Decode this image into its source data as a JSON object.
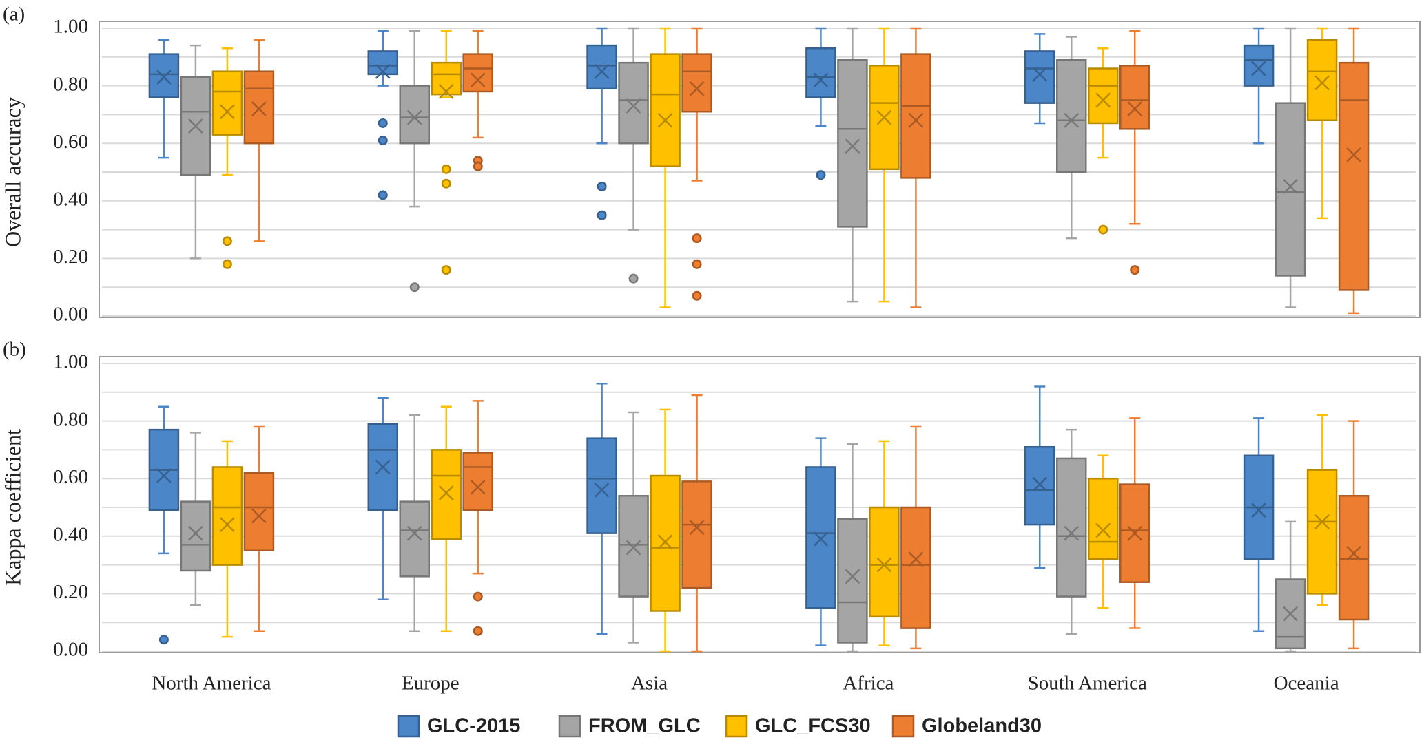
{
  "chart_data": [
    {
      "type": "box",
      "panel_label": "(a)",
      "ylabel": "Overall accuracy",
      "ylim": [
        0,
        1
      ],
      "yticks": [
        {
          "value": 0,
          "label": "0.00"
        },
        {
          "value": 0.2,
          "label": "0.20"
        },
        {
          "value": 0.4,
          "label": "0.40"
        },
        {
          "value": 0.6,
          "label": "0.60"
        },
        {
          "value": 0.8,
          "label": "0.80"
        },
        {
          "value": 1,
          "label": "1.00"
        }
      ],
      "yminorticks": [
        0.1,
        0.3,
        0.5,
        0.7,
        0.9
      ],
      "grid": true,
      "series": [
        {
          "name": "GLC-2015",
          "color": "#4a86c8",
          "values": [
            {
              "min": 0.55,
              "q1": 0.76,
              "median": 0.84,
              "q3": 0.91,
              "max": 0.96,
              "mean": 0.83,
              "outliers": []
            },
            {
              "min": 0.8,
              "q1": 0.84,
              "median": 0.87,
              "q3": 0.92,
              "max": 0.99,
              "mean": 0.85,
              "outliers": [
                0.67,
                0.61,
                0.42
              ]
            },
            {
              "min": 0.6,
              "q1": 0.79,
              "median": 0.87,
              "q3": 0.94,
              "max": 1.0,
              "mean": 0.85,
              "outliers": [
                0.45,
                0.35
              ]
            },
            {
              "min": 0.66,
              "q1": 0.76,
              "median": 0.83,
              "q3": 0.93,
              "max": 1.0,
              "mean": 0.82,
              "outliers": [
                0.49
              ]
            },
            {
              "min": 0.67,
              "q1": 0.74,
              "median": 0.86,
              "q3": 0.92,
              "max": 0.98,
              "mean": 0.84,
              "outliers": []
            },
            {
              "min": 0.6,
              "q1": 0.8,
              "median": 0.89,
              "q3": 0.94,
              "max": 1.0,
              "mean": 0.86,
              "outliers": []
            }
          ]
        },
        {
          "name": "FROM_GLC",
          "color": "#a5a5a5",
          "values": [
            {
              "min": 0.2,
              "q1": 0.49,
              "median": 0.71,
              "q3": 0.83,
              "max": 0.94,
              "mean": 0.66,
              "outliers": []
            },
            {
              "min": 0.38,
              "q1": 0.6,
              "median": 0.69,
              "q3": 0.8,
              "max": 0.99,
              "mean": 0.69,
              "outliers": [
                0.1
              ]
            },
            {
              "min": 0.3,
              "q1": 0.6,
              "median": 0.75,
              "q3": 0.88,
              "max": 1.0,
              "mean": 0.73,
              "outliers": [
                0.13
              ]
            },
            {
              "min": 0.05,
              "q1": 0.31,
              "median": 0.65,
              "q3": 0.89,
              "max": 1.0,
              "mean": 0.59,
              "outliers": []
            },
            {
              "min": 0.27,
              "q1": 0.5,
              "median": 0.68,
              "q3": 0.89,
              "max": 0.97,
              "mean": 0.68,
              "outliers": []
            },
            {
              "min": 0.03,
              "q1": 0.14,
              "median": 0.43,
              "q3": 0.74,
              "max": 1.0,
              "mean": 0.45,
              "outliers": []
            }
          ]
        },
        {
          "name": "GLC_FCS30",
          "color": "#ffc000",
          "values": [
            {
              "min": 0.49,
              "q1": 0.63,
              "median": 0.78,
              "q3": 0.85,
              "max": 0.93,
              "mean": 0.71,
              "outliers": [
                0.26,
                0.18
              ]
            },
            {
              "min": 0.76,
              "q1": 0.77,
              "median": 0.84,
              "q3": 0.88,
              "max": 0.99,
              "mean": 0.78,
              "outliers": [
                0.51,
                0.46,
                0.16
              ]
            },
            {
              "min": 0.03,
              "q1": 0.52,
              "median": 0.77,
              "q3": 0.91,
              "max": 1.0,
              "mean": 0.68,
              "outliers": []
            },
            {
              "min": 0.05,
              "q1": 0.51,
              "median": 0.74,
              "q3": 0.87,
              "max": 1.0,
              "mean": 0.69,
              "outliers": []
            },
            {
              "min": 0.55,
              "q1": 0.67,
              "median": 0.8,
              "q3": 0.86,
              "max": 0.93,
              "mean": 0.75,
              "outliers": [
                0.3
              ]
            },
            {
              "min": 0.34,
              "q1": 0.68,
              "median": 0.85,
              "q3": 0.96,
              "max": 1.0,
              "mean": 0.81,
              "outliers": []
            }
          ]
        },
        {
          "name": "Globeland30",
          "color": "#ed7d31",
          "values": [
            {
              "min": 0.26,
              "q1": 0.6,
              "median": 0.79,
              "q3": 0.85,
              "max": 0.96,
              "mean": 0.72,
              "outliers": []
            },
            {
              "min": 0.62,
              "q1": 0.78,
              "median": 0.86,
              "q3": 0.91,
              "max": 0.99,
              "mean": 0.82,
              "outliers": [
                0.54,
                0.52
              ]
            },
            {
              "min": 0.47,
              "q1": 0.71,
              "median": 0.85,
              "q3": 0.91,
              "max": 1.0,
              "mean": 0.79,
              "outliers": [
                0.27,
                0.18,
                0.07
              ]
            },
            {
              "min": 0.03,
              "q1": 0.48,
              "median": 0.73,
              "q3": 0.91,
              "max": 1.0,
              "mean": 0.68,
              "outliers": []
            },
            {
              "min": 0.32,
              "q1": 0.65,
              "median": 0.75,
              "q3": 0.87,
              "max": 0.99,
              "mean": 0.72,
              "outliers": [
                0.16
              ]
            },
            {
              "min": 0.01,
              "q1": 0.09,
              "median": 0.75,
              "q3": 0.88,
              "max": 1.0,
              "mean": 0.56,
              "outliers": []
            }
          ]
        }
      ]
    },
    {
      "type": "box",
      "panel_label": "(b)",
      "ylabel": "Kappa coefficient",
      "categories": [
        "North America",
        "Europe",
        "Asia",
        "Africa",
        "South America",
        "Oceania"
      ],
      "ylim": [
        0,
        1
      ],
      "yticks": [
        {
          "value": 0,
          "label": "0.00"
        },
        {
          "value": 0.2,
          "label": "0.20"
        },
        {
          "value": 0.4,
          "label": "0.40"
        },
        {
          "value": 0.6,
          "label": "0.60"
        },
        {
          "value": 0.8,
          "label": "0.80"
        },
        {
          "value": 1,
          "label": "1.00"
        }
      ],
      "yminorticks": [
        0.1,
        0.3,
        0.5,
        0.7,
        0.9
      ],
      "grid": true,
      "series": [
        {
          "values": [
            {
              "min": 0.34,
              "q1": 0.49,
              "median": 0.63,
              "q3": 0.77,
              "max": 0.85,
              "mean": 0.61,
              "outliers": [
                0.04
              ]
            },
            {
              "min": 0.18,
              "q1": 0.49,
              "median": 0.7,
              "q3": 0.79,
              "max": 0.88,
              "mean": 0.64,
              "outliers": []
            },
            {
              "min": 0.06,
              "q1": 0.41,
              "median": 0.6,
              "q3": 0.74,
              "max": 0.93,
              "mean": 0.56,
              "outliers": []
            },
            {
              "min": 0.02,
              "q1": 0.15,
              "median": 0.41,
              "q3": 0.64,
              "max": 0.74,
              "mean": 0.39,
              "outliers": []
            },
            {
              "min": 0.29,
              "q1": 0.44,
              "median": 0.56,
              "q3": 0.71,
              "max": 0.92,
              "mean": 0.58,
              "outliers": []
            },
            {
              "min": 0.07,
              "q1": 0.32,
              "median": 0.5,
              "q3": 0.68,
              "max": 0.81,
              "mean": 0.49,
              "outliers": []
            }
          ]
        },
        {
          "values": [
            {
              "min": 0.16,
              "q1": 0.28,
              "median": 0.37,
              "q3": 0.52,
              "max": 0.76,
              "mean": 0.41,
              "outliers": []
            },
            {
              "min": 0.07,
              "q1": 0.26,
              "median": 0.42,
              "q3": 0.52,
              "max": 0.82,
              "mean": 0.41,
              "outliers": []
            },
            {
              "min": 0.03,
              "q1": 0.19,
              "median": 0.37,
              "q3": 0.54,
              "max": 0.83,
              "mean": 0.36,
              "outliers": []
            },
            {
              "min": 0.0,
              "q1": 0.03,
              "median": 0.17,
              "q3": 0.46,
              "max": 0.72,
              "mean": 0.26,
              "outliers": []
            },
            {
              "min": 0.06,
              "q1": 0.19,
              "median": 0.4,
              "q3": 0.67,
              "max": 0.77,
              "mean": 0.41,
              "outliers": []
            },
            {
              "min": 0.0,
              "q1": 0.01,
              "median": 0.05,
              "q3": 0.25,
              "max": 0.45,
              "mean": 0.13,
              "outliers": []
            }
          ]
        },
        {
          "values": [
            {
              "min": 0.05,
              "q1": 0.3,
              "median": 0.5,
              "q3": 0.64,
              "max": 0.73,
              "mean": 0.44,
              "outliers": []
            },
            {
              "min": 0.07,
              "q1": 0.39,
              "median": 0.61,
              "q3": 0.7,
              "max": 0.85,
              "mean": 0.55,
              "outliers": []
            },
            {
              "min": 0.0,
              "q1": 0.14,
              "median": 0.36,
              "q3": 0.61,
              "max": 0.84,
              "mean": 0.38,
              "outliers": []
            },
            {
              "min": 0.02,
              "q1": 0.12,
              "median": 0.3,
              "q3": 0.5,
              "max": 0.73,
              "mean": 0.3,
              "outliers": []
            },
            {
              "min": 0.15,
              "q1": 0.32,
              "median": 0.38,
              "q3": 0.6,
              "max": 0.68,
              "mean": 0.42,
              "outliers": []
            },
            {
              "min": 0.16,
              "q1": 0.2,
              "median": 0.45,
              "q3": 0.63,
              "max": 0.82,
              "mean": 0.45,
              "outliers": []
            }
          ]
        },
        {
          "values": [
            {
              "min": 0.07,
              "q1": 0.35,
              "median": 0.5,
              "q3": 0.62,
              "max": 0.78,
              "mean": 0.47,
              "outliers": []
            },
            {
              "min": 0.27,
              "q1": 0.49,
              "median": 0.64,
              "q3": 0.69,
              "max": 0.87,
              "mean": 0.57,
              "outliers": [
                0.19,
                0.07
              ]
            },
            {
              "min": 0.0,
              "q1": 0.22,
              "median": 0.44,
              "q3": 0.59,
              "max": 0.89,
              "mean": 0.43,
              "outliers": []
            },
            {
              "min": 0.01,
              "q1": 0.08,
              "median": 0.3,
              "q3": 0.5,
              "max": 0.78,
              "mean": 0.32,
              "outliers": []
            },
            {
              "min": 0.08,
              "q1": 0.24,
              "median": 0.42,
              "q3": 0.58,
              "max": 0.81,
              "mean": 0.41,
              "outliers": []
            },
            {
              "min": 0.01,
              "q1": 0.11,
              "median": 0.32,
              "q3": 0.54,
              "max": 0.8,
              "mean": 0.34,
              "outliers": []
            }
          ]
        }
      ]
    }
  ]
}
